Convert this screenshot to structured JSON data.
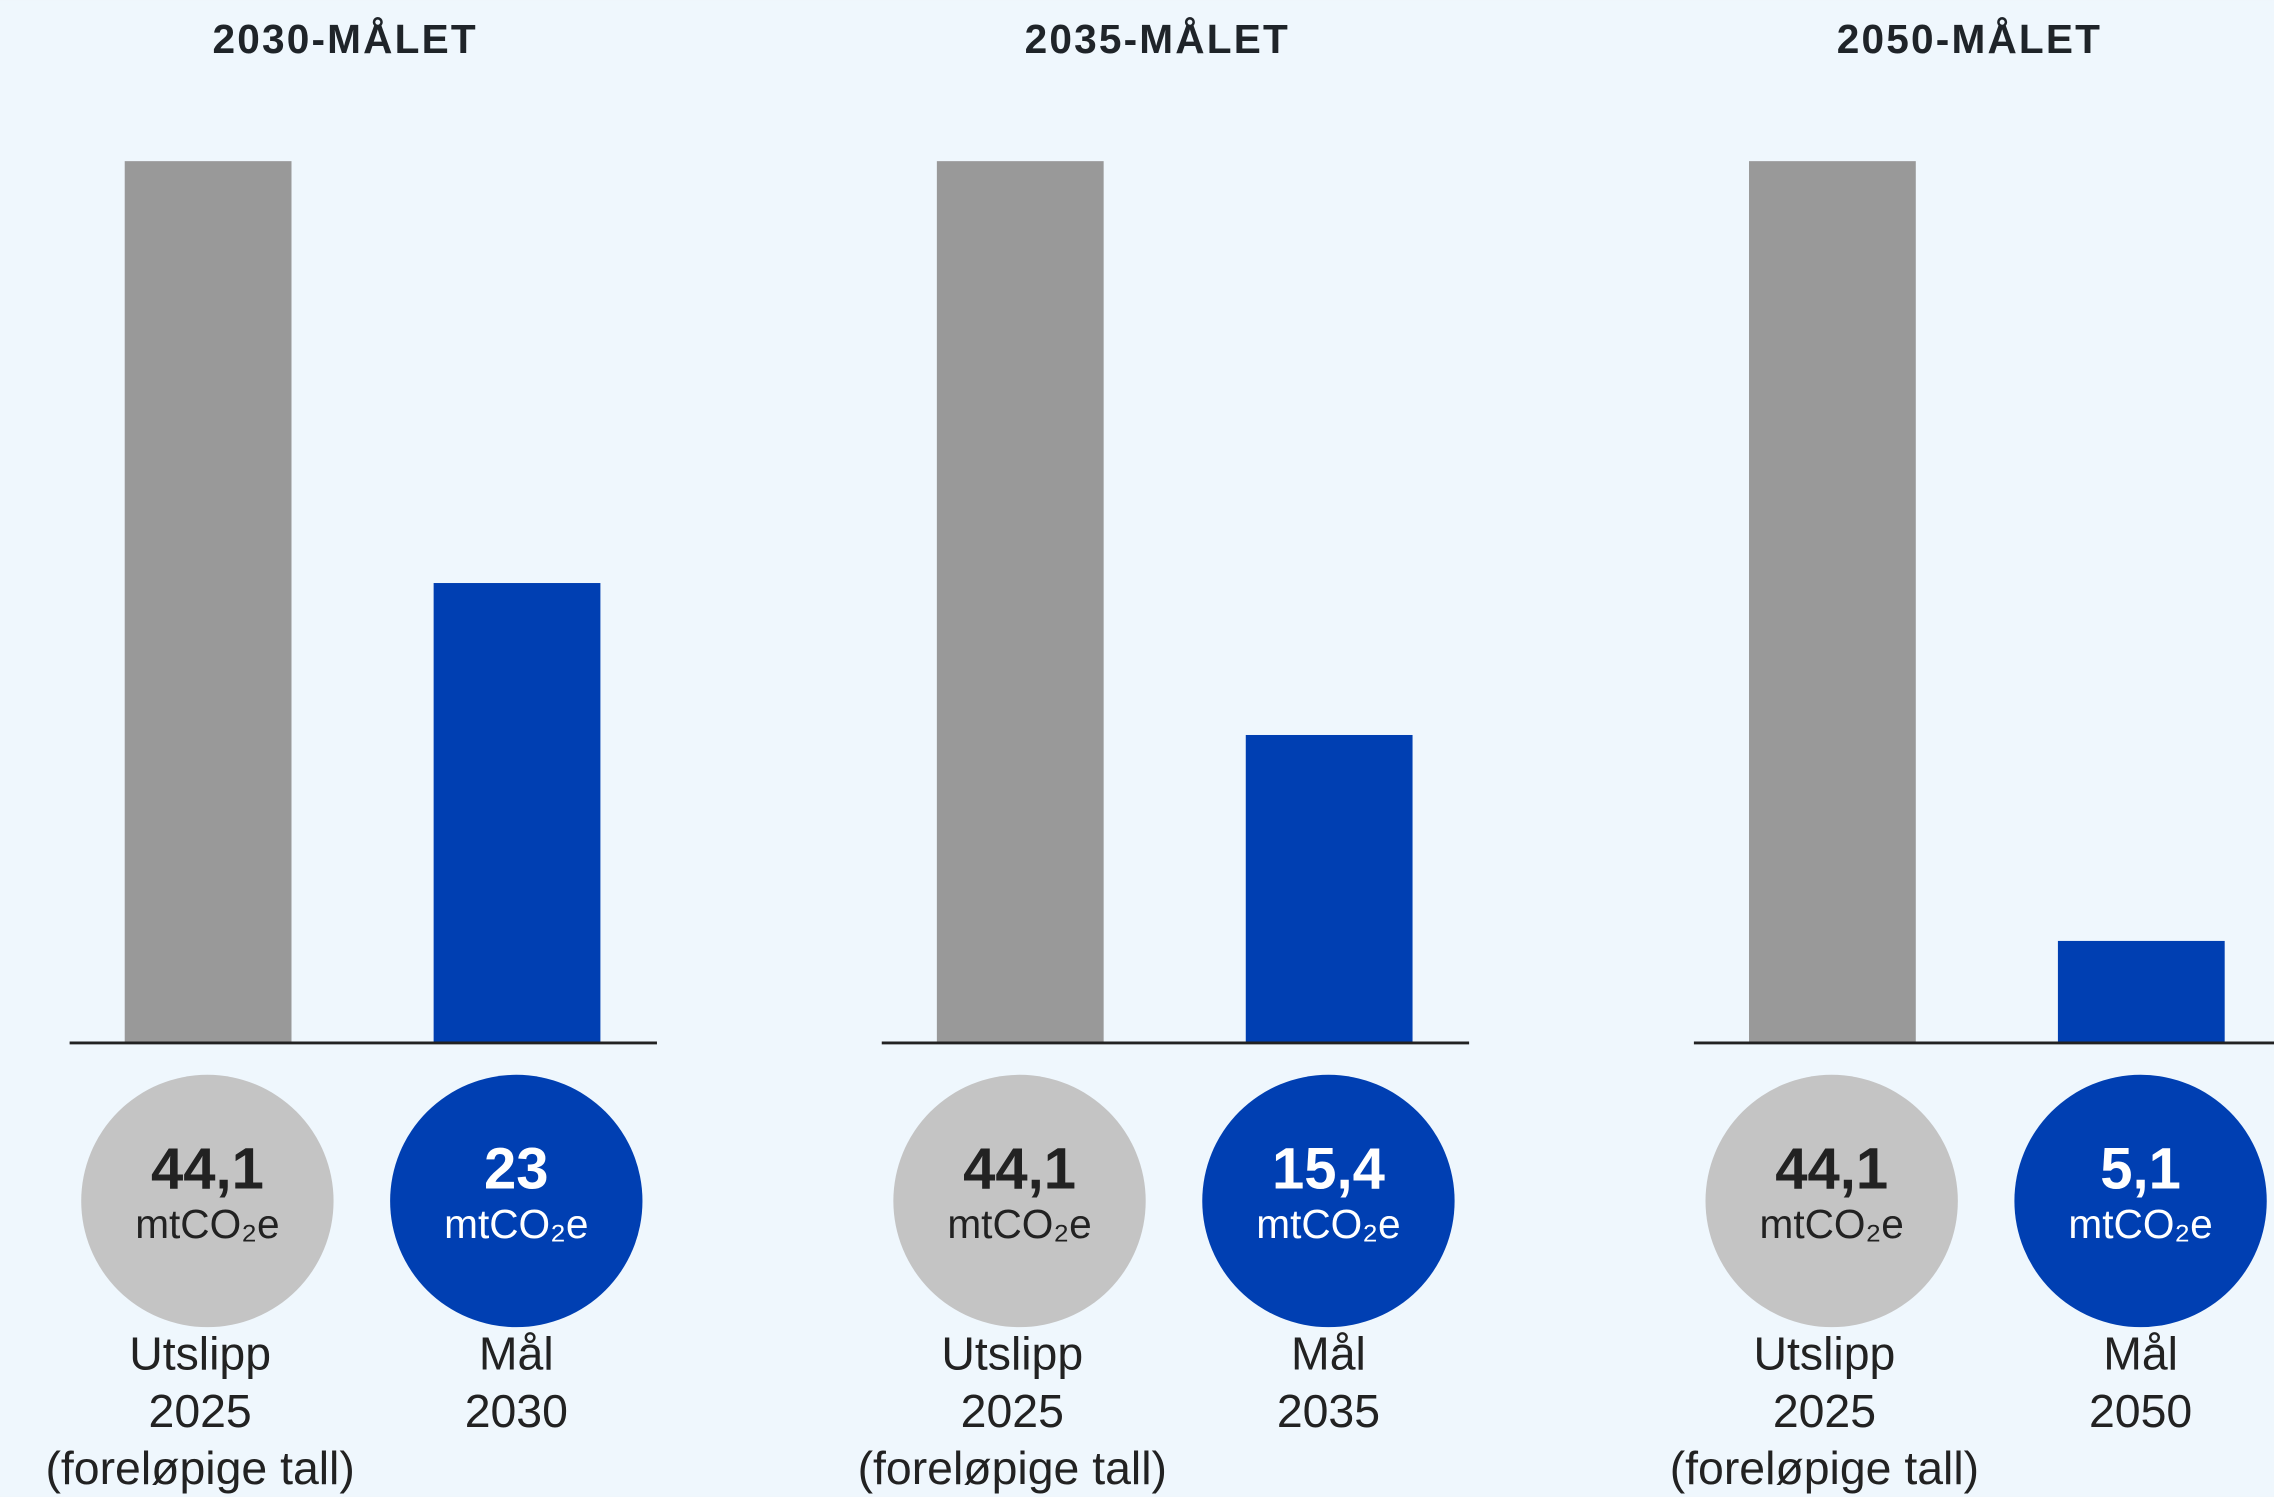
{
  "chart_data": [
    {
      "type": "bar",
      "title": "2030-MÅLET",
      "categories": [
        "Utslipp\n2025\n(foreløpige tall)",
        "Mål\n2030"
      ],
      "values": [
        44.1,
        23
      ],
      "value_labels": [
        "44,1",
        "23"
      ],
      "unit": "mtCO₂e",
      "colors": [
        "#999999",
        "#003fb2"
      ],
      "badge_colors": [
        "#c4c4c4",
        "#003fb2"
      ]
    },
    {
      "type": "bar",
      "title": "2035-MÅLET",
      "categories": [
        "Utslipp\n2025\n(foreløpige tall)",
        "Mål\n2035"
      ],
      "values": [
        44.1,
        15.4
      ],
      "value_labels": [
        "44,1",
        "15,4"
      ],
      "unit": "mtCO₂e",
      "colors": [
        "#999999",
        "#003fb2"
      ],
      "badge_colors": [
        "#c4c4c4",
        "#003fb2"
      ]
    },
    {
      "type": "bar",
      "title": "2050-MÅLET",
      "categories": [
        "Utslipp\n2025\n(foreløpige tall)",
        "Mål\n2050"
      ],
      "values": [
        44.1,
        5.1
      ],
      "value_labels": [
        "44,1",
        "5,1"
      ],
      "unit": "mtCO₂e",
      "colors": [
        "#999999",
        "#003fb2"
      ],
      "badge_colors": [
        "#c4c4c4",
        "#003fb2"
      ]
    }
  ]
}
